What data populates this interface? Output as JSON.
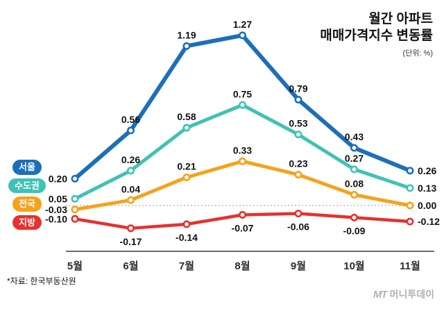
{
  "title": {
    "line1": "월간 아파트",
    "line2": "매매가격지수 변동률",
    "unit": "(단위: %)"
  },
  "footnote": "*자료: 한국부동산원",
  "watermark": {
    "logo": "MT",
    "text": "머니투데이"
  },
  "chart_data": {
    "type": "line",
    "title": "월간 아파트 매매가격지수 변동률",
    "unit": "%",
    "categories": [
      "5월",
      "6월",
      "7월",
      "8월",
      "9월",
      "10월",
      "11월"
    ],
    "series": [
      {
        "name": "서울",
        "color": "#1c6fba",
        "values": [
          0.2,
          0.56,
          1.19,
          1.27,
          0.79,
          0.43,
          0.26
        ]
      },
      {
        "name": "수도권",
        "color": "#3fc2b4",
        "values": [
          0.05,
          0.26,
          0.58,
          0.75,
          0.53,
          0.27,
          0.13
        ]
      },
      {
        "name": "전국",
        "color": "#f5a21b",
        "values": [
          -0.03,
          0.04,
          0.21,
          0.33,
          0.23,
          0.08,
          0.0
        ]
      },
      {
        "name": "지방",
        "color": "#e6312e",
        "values": [
          -0.1,
          -0.17,
          -0.14,
          -0.07,
          -0.06,
          -0.09,
          -0.12
        ]
      }
    ],
    "ylim": [
      -0.3,
      1.4
    ],
    "zero_line": true,
    "grid": false,
    "legend_position": "left",
    "label_format": "0.00"
  }
}
